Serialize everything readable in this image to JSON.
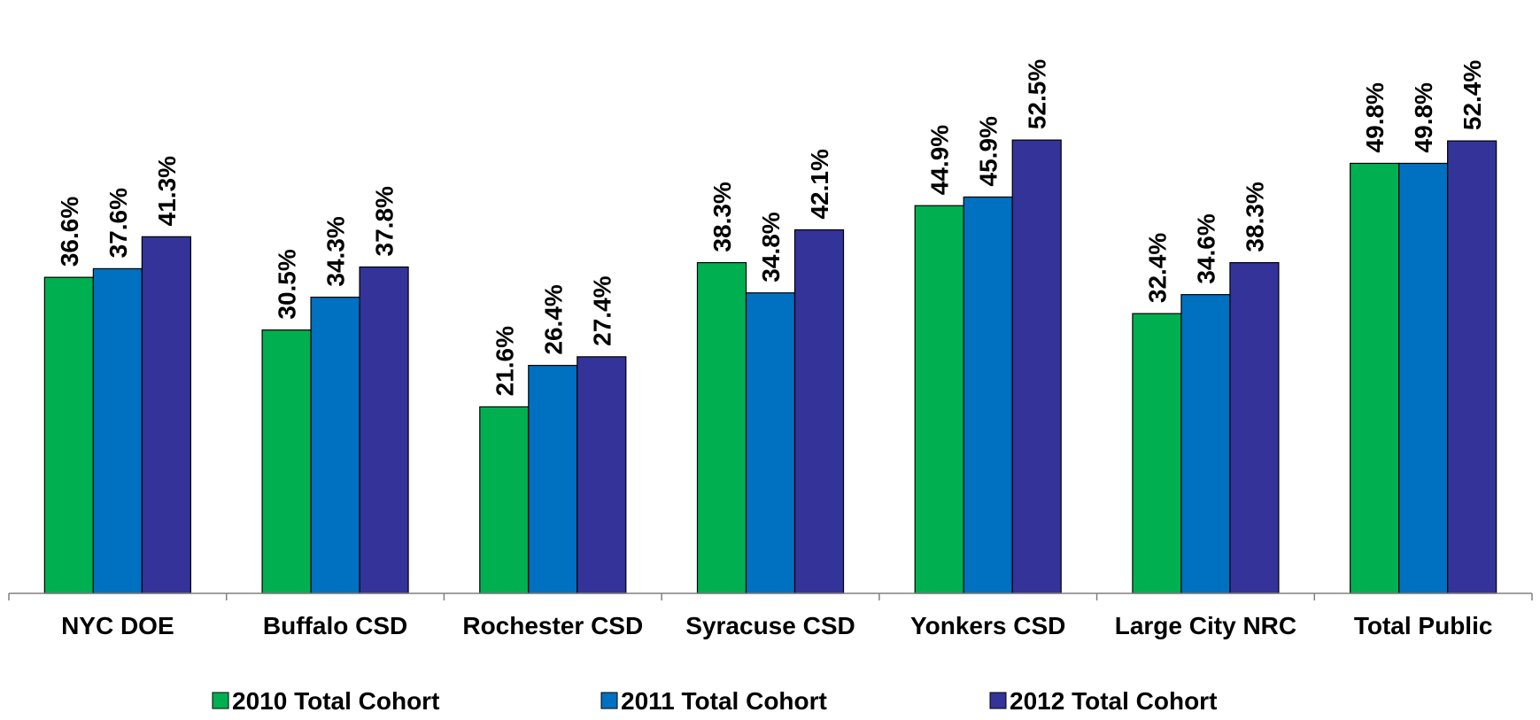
{
  "chart_data": {
    "type": "bar",
    "title": "",
    "xlabel": "",
    "ylabel": "",
    "ylim": [
      0,
      55
    ],
    "grid": false,
    "legend_position": "bottom",
    "categories": [
      "NYC DOE",
      "Buffalo CSD",
      "Rochester CSD",
      "Syracuse CSD",
      "Yonkers CSD",
      "Large City NRC",
      "Total Public"
    ],
    "series": [
      {
        "name": "2010 Total Cohort",
        "color": "#00B050",
        "values": [
          36.6,
          30.5,
          21.6,
          38.3,
          44.9,
          32.4,
          49.8
        ],
        "labels": [
          "36.6%",
          "30.5%",
          "21.6%",
          "38.3%",
          "44.9%",
          "32.4%",
          "49.8%"
        ]
      },
      {
        "name": "2011 Total Cohort",
        "color": "#0070C0",
        "values": [
          37.6,
          34.3,
          26.4,
          34.8,
          45.9,
          34.6,
          49.8
        ],
        "labels": [
          "37.6%",
          "34.3%",
          "26.4%",
          "34.8%",
          "45.9%",
          "34.6%",
          "49.8%"
        ]
      },
      {
        "name": "2012 Total Cohort",
        "color": "#333399",
        "values": [
          41.3,
          37.8,
          27.4,
          42.1,
          52.5,
          38.3,
          52.4
        ],
        "labels": [
          "41.3%",
          "37.8%",
          "27.4%",
          "42.1%",
          "52.5%",
          "38.3%",
          "52.4%"
        ]
      }
    ]
  }
}
